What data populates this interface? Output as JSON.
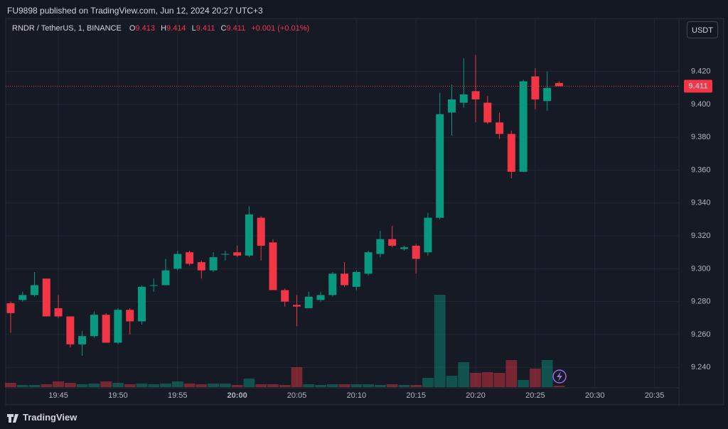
{
  "published": "FU9898 published on TradingView.com, Jun 12, 2024 20:27 UTC+3",
  "footer": "TradingView",
  "chart_data": {
    "type": "candlestick",
    "symbol": "RNDR / TetherUS, 1, BINANCE",
    "ohlc_letters": [
      "O",
      "H",
      "L",
      "C"
    ],
    "change": "+0.001 (+0.01%)",
    "currency": "USDT",
    "up_color": "#089981",
    "down_color": "#f23645",
    "grid": true,
    "categories": [
      null,
      null,
      null,
      null,
      "19:45",
      null,
      null,
      null,
      null,
      "19:50",
      null,
      null,
      null,
      null,
      "19:55",
      null,
      null,
      null,
      null,
      "20:00",
      null,
      null,
      null,
      null,
      "20:05",
      null,
      null,
      null,
      null,
      "20:10",
      null,
      null,
      null,
      null,
      "20:15",
      null,
      null,
      null,
      null,
      "20:20",
      null,
      null,
      null,
      null,
      "20:25",
      null,
      null,
      null,
      null,
      "20:30",
      null,
      null,
      null,
      null,
      "20:35",
      null,
      null
    ],
    "open": [
      9.279,
      9.281,
      9.284,
      9.294,
      9.276,
      9.271,
      9.254,
      9.259,
      9.272,
      9.255,
      9.275,
      9.268,
      9.29,
      9.29,
      9.3,
      9.31,
      9.304,
      9.299,
      9.309,
      9.31,
      9.308,
      9.331,
      9.316,
      9.287,
      9.278,
      9.276,
      9.281,
      9.284,
      9.297,
      9.289,
      9.297,
      9.309,
      9.318,
      9.312,
      9.314,
      9.31,
      9.331,
      9.395,
      9.401,
      9.408,
      9.401,
      9.389,
      9.382,
      9.359,
      9.417,
      9.402,
      9.413,
      null,
      null,
      null,
      null,
      null,
      null,
      null,
      null,
      null,
      null
    ],
    "high": [
      9.28,
      9.286,
      9.298,
      9.294,
      9.284,
      9.271,
      9.262,
      9.274,
      9.273,
      9.276,
      9.276,
      9.29,
      9.294,
      9.306,
      9.311,
      9.311,
      9.305,
      9.31,
      9.311,
      9.314,
      9.338,
      9.332,
      9.318,
      9.288,
      9.284,
      9.286,
      9.286,
      9.298,
      9.304,
      9.299,
      9.311,
      9.323,
      9.326,
      9.314,
      9.315,
      9.334,
      9.407,
      9.412,
      9.428,
      9.43,
      9.405,
      9.395,
      9.384,
      9.415,
      9.422,
      9.42,
      9.414,
      null,
      null,
      null,
      null,
      null,
      null,
      null,
      null,
      null,
      null
    ],
    "low": [
      9.261,
      9.28,
      9.283,
      9.271,
      9.27,
      9.252,
      9.247,
      9.258,
      9.255,
      9.254,
      9.26,
      9.266,
      9.286,
      9.29,
      9.299,
      9.302,
      9.294,
      9.298,
      9.305,
      9.307,
      9.307,
      9.305,
      9.287,
      9.277,
      9.265,
      9.276,
      9.28,
      9.283,
      9.289,
      9.287,
      9.296,
      9.307,
      9.313,
      9.311,
      9.297,
      9.308,
      9.33,
      9.381,
      9.398,
      9.389,
      9.388,
      9.379,
      9.355,
      9.359,
      9.397,
      9.396,
      9.411,
      null,
      null,
      null,
      null,
      null,
      null,
      null,
      null,
      null,
      null
    ],
    "close": [
      9.273,
      9.284,
      9.29,
      9.271,
      9.271,
      9.254,
      9.259,
      9.272,
      9.255,
      9.275,
      9.268,
      9.289,
      9.29,
      9.299,
      9.309,
      9.303,
      9.299,
      9.307,
      9.309,
      9.308,
      9.333,
      9.314,
      9.287,
      9.28,
      9.277,
      9.283,
      9.284,
      9.297,
      9.29,
      9.298,
      9.31,
      9.318,
      9.314,
      9.313,
      9.306,
      9.331,
      9.394,
      9.403,
      9.406,
      9.403,
      9.389,
      9.382,
      9.359,
      9.414,
      9.403,
      9.41,
      9.411,
      null,
      null,
      null,
      null,
      null,
      null,
      null,
      null,
      null,
      null
    ],
    "volume": [
      6,
      3,
      3,
      4,
      8,
      6,
      4,
      5,
      8,
      6,
      4,
      5,
      4,
      5,
      8,
      5,
      4,
      5,
      5,
      3,
      12,
      4,
      4,
      3,
      28,
      4,
      3,
      4,
      4,
      4,
      4,
      3,
      4,
      3,
      3,
      13,
      130,
      16,
      35,
      20,
      21,
      20,
      38,
      10,
      26,
      38,
      2,
      null,
      null,
      null,
      null,
      null,
      null,
      null,
      null,
      null,
      null
    ],
    "ylim": [
      9.228,
      9.441
    ],
    "yticks": [
      {
        "value": 9.24,
        "label": "9.240"
      },
      {
        "value": 9.26,
        "label": "9.260"
      },
      {
        "value": 9.28,
        "label": "9.280"
      },
      {
        "value": 9.3,
        "label": "9.300"
      },
      {
        "value": 9.32,
        "label": "9.320"
      },
      {
        "value": 9.34,
        "label": "9.340"
      },
      {
        "value": 9.36,
        "label": "9.360"
      },
      {
        "value": 9.38,
        "label": "9.380"
      },
      {
        "value": 9.4,
        "label": "9.400"
      },
      {
        "value": 9.42,
        "label": "9.420"
      }
    ]
  }
}
